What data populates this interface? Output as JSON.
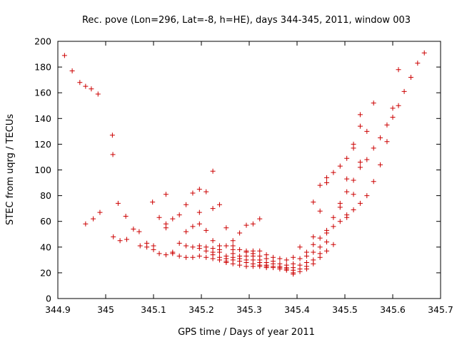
{
  "chart_data": {
    "type": "scatter",
    "title": "Rec. pove (Lon=296, Lat=-8, h=HE), days 344-345, 2011, window 003",
    "xlabel": "GPS time / Days of year 2011",
    "ylabel": "STEC from uqrg / TECUs",
    "xlim": [
      344.9,
      345.7
    ],
    "ylim": [
      0,
      200
    ],
    "xticks": [
      "344.9",
      "345",
      "345.1",
      "345.2",
      "345.3",
      "345.4",
      "345.5",
      "345.6",
      "345.7"
    ],
    "yticks": [
      "0",
      "20",
      "40",
      "60",
      "80",
      "100",
      "120",
      "140",
      "160",
      "180",
      "200"
    ],
    "grid": false,
    "marker": "+",
    "marker_color": "#cc0000",
    "points": [
      [
        344.914,
        189
      ],
      [
        344.93,
        177
      ],
      [
        344.946,
        168
      ],
      [
        344.958,
        165
      ],
      [
        344.97,
        163
      ],
      [
        344.984,
        159
      ],
      [
        345.014,
        127
      ],
      [
        345.015,
        112
      ],
      [
        344.958,
        58
      ],
      [
        344.974,
        62
      ],
      [
        344.988,
        67
      ],
      [
        345.016,
        48
      ],
      [
        345.03,
        45
      ],
      [
        345.044,
        46
      ],
      [
        345.026,
        74
      ],
      [
        345.042,
        64
      ],
      [
        345.058,
        54
      ],
      [
        345.07,
        52
      ],
      [
        345.072,
        41
      ],
      [
        345.086,
        43
      ],
      [
        345.086,
        40
      ],
      [
        345.1,
        38
      ],
      [
        345.1,
        41
      ],
      [
        345.098,
        75
      ],
      [
        345.112,
        63
      ],
      [
        345.126,
        58
      ],
      [
        345.126,
        55
      ],
      [
        345.126,
        81
      ],
      [
        345.14,
        62
      ],
      [
        345.154,
        65
      ],
      [
        345.112,
        35
      ],
      [
        345.126,
        34
      ],
      [
        345.14,
        36
      ],
      [
        345.14,
        35
      ],
      [
        345.154,
        33
      ],
      [
        345.154,
        43
      ],
      [
        345.168,
        32
      ],
      [
        345.168,
        41
      ],
      [
        345.168,
        73
      ],
      [
        345.168,
        52
      ],
      [
        345.182,
        56
      ],
      [
        345.182,
        82
      ],
      [
        345.182,
        40
      ],
      [
        345.182,
        32
      ],
      [
        345.196,
        85
      ],
      [
        345.196,
        67
      ],
      [
        345.196,
        58
      ],
      [
        345.196,
        41
      ],
      [
        345.196,
        39
      ],
      [
        345.196,
        33
      ],
      [
        345.21,
        83
      ],
      [
        345.21,
        53
      ],
      [
        345.21,
        40
      ],
      [
        345.21,
        37
      ],
      [
        345.21,
        32
      ],
      [
        345.224,
        99
      ],
      [
        345.224,
        70
      ],
      [
        345.224,
        45
      ],
      [
        345.224,
        39
      ],
      [
        345.224,
        34
      ],
      [
        345.224,
        36
      ],
      [
        345.224,
        31
      ],
      [
        345.238,
        73
      ],
      [
        345.238,
        41
      ],
      [
        345.238,
        38
      ],
      [
        345.238,
        36
      ],
      [
        345.238,
        32
      ],
      [
        345.238,
        30
      ],
      [
        345.252,
        55
      ],
      [
        345.252,
        41
      ],
      [
        345.252,
        33
      ],
      [
        345.252,
        31
      ],
      [
        345.252,
        29
      ],
      [
        345.252,
        28
      ],
      [
        345.266,
        45
      ],
      [
        345.266,
        41
      ],
      [
        345.266,
        38
      ],
      [
        345.266,
        35
      ],
      [
        345.266,
        32
      ],
      [
        345.266,
        30
      ],
      [
        345.266,
        27
      ],
      [
        345.28,
        51
      ],
      [
        345.28,
        38
      ],
      [
        345.28,
        33
      ],
      [
        345.28,
        31
      ],
      [
        345.28,
        29
      ],
      [
        345.28,
        26
      ],
      [
        345.294,
        57
      ],
      [
        345.294,
        37
      ],
      [
        345.294,
        36
      ],
      [
        345.294,
        33
      ],
      [
        345.294,
        30
      ],
      [
        345.294,
        28
      ],
      [
        345.294,
        25
      ],
      [
        345.308,
        58
      ],
      [
        345.308,
        37
      ],
      [
        345.308,
        35
      ],
      [
        345.308,
        33
      ],
      [
        345.308,
        30
      ],
      [
        345.308,
        27
      ],
      [
        345.308,
        25
      ],
      [
        345.322,
        62
      ],
      [
        345.322,
        37
      ],
      [
        345.322,
        33
      ],
      [
        345.322,
        30
      ],
      [
        345.322,
        28
      ],
      [
        345.322,
        26
      ],
      [
        345.322,
        25
      ],
      [
        345.336,
        34
      ],
      [
        345.336,
        31
      ],
      [
        345.336,
        28
      ],
      [
        345.336,
        26
      ],
      [
        345.336,
        25
      ],
      [
        345.336,
        24
      ],
      [
        345.35,
        32
      ],
      [
        345.35,
        29
      ],
      [
        345.35,
        27
      ],
      [
        345.35,
        25
      ],
      [
        345.35,
        24
      ],
      [
        345.364,
        31
      ],
      [
        345.364,
        27
      ],
      [
        345.364,
        25
      ],
      [
        345.364,
        24
      ],
      [
        345.364,
        23
      ],
      [
        345.378,
        30
      ],
      [
        345.378,
        26
      ],
      [
        345.378,
        24
      ],
      [
        345.378,
        23
      ],
      [
        345.378,
        22
      ],
      [
        345.392,
        32
      ],
      [
        345.392,
        27
      ],
      [
        345.392,
        24
      ],
      [
        345.392,
        22
      ],
      [
        345.392,
        20
      ],
      [
        345.392,
        19
      ],
      [
        345.406,
        40
      ],
      [
        345.406,
        31
      ],
      [
        345.406,
        26
      ],
      [
        345.406,
        23
      ],
      [
        345.406,
        21
      ],
      [
        345.42,
        36
      ],
      [
        345.42,
        33
      ],
      [
        345.42,
        28
      ],
      [
        345.42,
        25
      ],
      [
        345.42,
        23
      ],
      [
        345.434,
        75
      ],
      [
        345.434,
        48
      ],
      [
        345.434,
        42
      ],
      [
        345.434,
        36
      ],
      [
        345.434,
        30
      ],
      [
        345.434,
        27
      ],
      [
        345.448,
        88
      ],
      [
        345.448,
        68
      ],
      [
        345.448,
        47
      ],
      [
        345.448,
        40
      ],
      [
        345.448,
        35
      ],
      [
        345.448,
        32
      ],
      [
        345.462,
        94
      ],
      [
        345.462,
        90
      ],
      [
        345.462,
        53
      ],
      [
        345.462,
        51
      ],
      [
        345.462,
        44
      ],
      [
        345.462,
        37
      ],
      [
        345.476,
        98
      ],
      [
        345.476,
        63
      ],
      [
        345.476,
        56
      ],
      [
        345.476,
        42
      ],
      [
        345.49,
        103
      ],
      [
        345.49,
        74
      ],
      [
        345.49,
        71
      ],
      [
        345.49,
        60
      ],
      [
        345.504,
        109
      ],
      [
        345.504,
        93
      ],
      [
        345.504,
        83
      ],
      [
        345.504,
        65
      ],
      [
        345.504,
        63
      ],
      [
        345.518,
        120
      ],
      [
        345.518,
        117
      ],
      [
        345.518,
        92
      ],
      [
        345.518,
        81
      ],
      [
        345.518,
        69
      ],
      [
        345.532,
        143
      ],
      [
        345.532,
        134
      ],
      [
        345.532,
        106
      ],
      [
        345.532,
        102
      ],
      [
        345.532,
        74
      ],
      [
        345.546,
        130
      ],
      [
        345.546,
        108
      ],
      [
        345.546,
        80
      ],
      [
        345.56,
        152
      ],
      [
        345.56,
        117
      ],
      [
        345.56,
        91
      ],
      [
        345.574,
        125
      ],
      [
        345.574,
        104
      ],
      [
        345.588,
        135
      ],
      [
        345.588,
        122
      ],
      [
        345.6,
        148
      ],
      [
        345.6,
        141
      ],
      [
        345.612,
        178
      ],
      [
        345.612,
        150
      ],
      [
        345.624,
        161
      ],
      [
        345.638,
        172
      ],
      [
        345.652,
        183
      ],
      [
        345.666,
        191
      ]
    ]
  }
}
